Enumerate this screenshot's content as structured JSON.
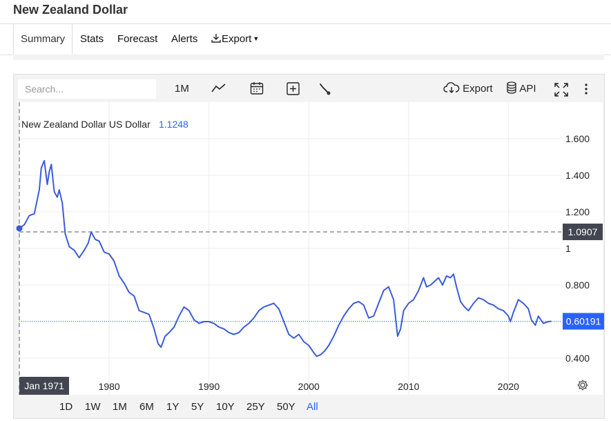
{
  "page": {
    "title": "New Zealand Dollar"
  },
  "tabs": [
    {
      "label": "Summary",
      "active": true
    },
    {
      "label": "Stats"
    },
    {
      "label": "Forecast"
    },
    {
      "label": "Alerts"
    },
    {
      "label": "Export"
    }
  ],
  "toolbar": {
    "search_placeholder": "Search...",
    "interval": "1M",
    "export_label": "Export",
    "api_label": "API"
  },
  "legend": {
    "name": "New Zealand Dollar US Dollar",
    "value": "1.1248"
  },
  "periods": [
    "1D",
    "1W",
    "1M",
    "6M",
    "1Y",
    "5Y",
    "10Y",
    "25Y",
    "50Y",
    "All"
  ],
  "selected_period": "All",
  "crosshair": {
    "date_label": "Jan 1971",
    "price_label": "1.0907"
  },
  "last_price_label": "0.60191",
  "colors": {
    "line": "#3b5bdb",
    "accent": "#2962ff",
    "label_bg": "#434651"
  },
  "chart_data": {
    "type": "line",
    "series": [
      {
        "name": "New Zealand Dollar US Dollar",
        "x": [
          1971.0,
          1971.5,
          1972.0,
          1972.5,
          1973.0,
          1973.2,
          1973.5,
          1973.8,
          1974.0,
          1974.2,
          1974.5,
          1974.8,
          1975.0,
          1975.3,
          1975.6,
          1976.0,
          1976.5,
          1977.0,
          1977.5,
          1977.9,
          1978.2,
          1978.6,
          1979.0,
          1979.5,
          1980.0,
          1980.5,
          1981.0,
          1981.5,
          1982.0,
          1982.5,
          1983.0,
          1983.5,
          1984.0,
          1984.5,
          1984.9,
          1985.2,
          1985.6,
          1986.0,
          1986.5,
          1987.0,
          1987.5,
          1988.0,
          1988.5,
          1989.0,
          1989.5,
          1990.0,
          1990.5,
          1991.0,
          1991.5,
          1992.0,
          1992.5,
          1993.0,
          1993.5,
          1994.0,
          1994.5,
          1995.0,
          1995.5,
          1996.0,
          1996.5,
          1997.0,
          1997.5,
          1998.0,
          1998.5,
          1999.0,
          1999.5,
          2000.0,
          2000.5,
          2000.8,
          2001.2,
          2001.6,
          2002.0,
          2002.5,
          2003.0,
          2003.5,
          2004.0,
          2004.5,
          2005.0,
          2005.5,
          2006.0,
          2006.5,
          2007.0,
          2007.5,
          2008.0,
          2008.5,
          2008.9,
          2009.2,
          2009.5,
          2010.0,
          2010.5,
          2011.0,
          2011.5,
          2011.8,
          2012.2,
          2012.6,
          2013.0,
          2013.4,
          2013.8,
          2014.2,
          2014.5,
          2014.8,
          2015.2,
          2015.6,
          2016.0,
          2016.5,
          2017.0,
          2017.5,
          2018.0,
          2018.5,
          2019.0,
          2019.5,
          2020.0,
          2020.2,
          2020.5,
          2021.0,
          2021.5,
          2022.0,
          2022.3,
          2022.7,
          2023.0,
          2023.5,
          2024.0,
          2024.3
        ],
        "y": [
          1.11,
          1.13,
          1.18,
          1.19,
          1.32,
          1.44,
          1.48,
          1.35,
          1.42,
          1.46,
          1.31,
          1.28,
          1.32,
          1.25,
          1.08,
          1.01,
          0.99,
          0.95,
          0.99,
          1.03,
          1.09,
          1.05,
          1.04,
          0.98,
          0.97,
          0.93,
          0.85,
          0.81,
          0.76,
          0.74,
          0.66,
          0.65,
          0.64,
          0.56,
          0.48,
          0.46,
          0.52,
          0.54,
          0.57,
          0.63,
          0.68,
          0.66,
          0.61,
          0.59,
          0.6,
          0.6,
          0.59,
          0.57,
          0.56,
          0.54,
          0.53,
          0.54,
          0.57,
          0.59,
          0.62,
          0.66,
          0.68,
          0.69,
          0.7,
          0.67,
          0.6,
          0.53,
          0.51,
          0.53,
          0.49,
          0.47,
          0.43,
          0.41,
          0.42,
          0.44,
          0.47,
          0.52,
          0.58,
          0.63,
          0.67,
          0.7,
          0.71,
          0.69,
          0.62,
          0.63,
          0.7,
          0.77,
          0.79,
          0.72,
          0.52,
          0.56,
          0.66,
          0.7,
          0.72,
          0.77,
          0.84,
          0.79,
          0.8,
          0.82,
          0.84,
          0.8,
          0.85,
          0.84,
          0.86,
          0.79,
          0.71,
          0.68,
          0.66,
          0.7,
          0.73,
          0.72,
          0.7,
          0.69,
          0.67,
          0.66,
          0.63,
          0.6,
          0.65,
          0.72,
          0.7,
          0.67,
          0.61,
          0.58,
          0.63,
          0.59,
          0.6,
          0.602
        ]
      }
    ],
    "x_ticks": [
      "1980",
      "1990",
      "2000",
      "2010",
      "2020"
    ],
    "y_ticks": [
      "1.600",
      "1.400",
      "1.200",
      "1",
      "0.800",
      "0.400"
    ],
    "xlim": [
      1971,
      2025.3
    ],
    "ylim": [
      0.2,
      1.8
    ],
    "grid": true,
    "crosshair_value": 1.0907,
    "last_value": 0.60191
  }
}
